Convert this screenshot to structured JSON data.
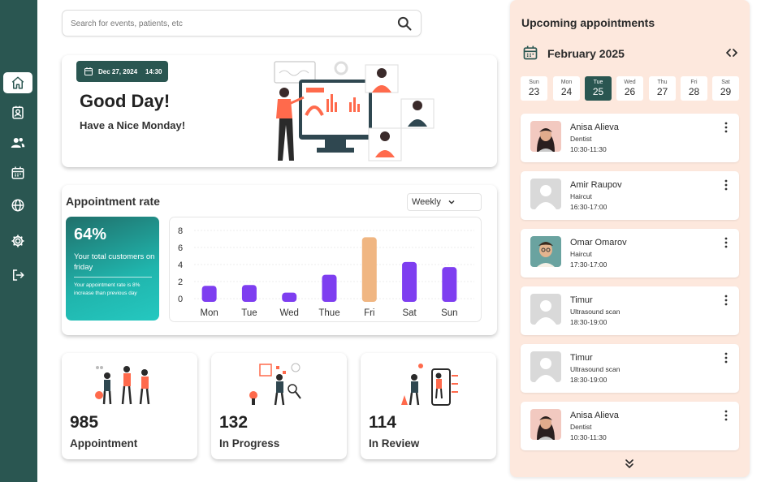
{
  "sidebar": {
    "items": [
      {
        "icon": "home-icon",
        "active": true
      },
      {
        "icon": "contact-card-icon"
      },
      {
        "icon": "users-icon"
      },
      {
        "icon": "calendar-icon"
      },
      {
        "icon": "globe-icon"
      },
      {
        "icon": "gear-icon"
      },
      {
        "icon": "logout-icon"
      }
    ]
  },
  "search": {
    "placeholder": "Search for events, patients, etc"
  },
  "hero": {
    "date": "Dec 27, 2024",
    "time": "14:30",
    "title": "Good Day!",
    "subtitle": "Have a Nice Monday!"
  },
  "rate": {
    "title": "Appointment rate",
    "period": "Weekly",
    "percent": "64%",
    "description": "Your total customers on friday",
    "note": "Your appointment rate is 8% increase than previous day"
  },
  "chart_data": {
    "type": "bar",
    "categories": [
      "Mon",
      "Tue",
      "Wed",
      "Thue",
      "Fri",
      "Sat",
      "Sun"
    ],
    "values": [
      1.5,
      1.6,
      0.7,
      2.8,
      7.2,
      4.3,
      3.7
    ],
    "highlight": "Fri",
    "yticks": [
      "0",
      "2",
      "4",
      "6",
      "8"
    ],
    "ylim": [
      0,
      8
    ],
    "title": "",
    "xlabel": "",
    "ylabel": "",
    "colors": {
      "normal": "#7e3ef0",
      "highlight": "#f0b682"
    }
  },
  "stats": [
    {
      "value": "985",
      "label": "Appointment"
    },
    {
      "value": "132",
      "label": "In Progress"
    },
    {
      "value": "114",
      "label": "In Review"
    }
  ],
  "panel": {
    "title": "Upcoming appointments",
    "month": "February 2025",
    "days": [
      {
        "name": "Sun",
        "num": "23"
      },
      {
        "name": "Mon",
        "num": "24"
      },
      {
        "name": "Tue",
        "num": "25",
        "selected": true
      },
      {
        "name": "Wed",
        "num": "26"
      },
      {
        "name": "Thu",
        "num": "27"
      },
      {
        "name": "Fri",
        "num": "28"
      },
      {
        "name": "Sat",
        "num": "29"
      }
    ],
    "appointments": [
      {
        "name": "Anisa Alieva",
        "service": "Dentist",
        "time": "10:30-11:30",
        "avatar": "woman"
      },
      {
        "name": "Amir Raupov",
        "service": "Haircut",
        "time": "16:30-17:00",
        "avatar": "placeholder"
      },
      {
        "name": "Omar Omarov",
        "service": "Haircut",
        "time": "17:30-17:00",
        "avatar": "man"
      },
      {
        "name": "Timur",
        "service": "Ultrasound scan",
        "time": "18:30-19:00",
        "avatar": "placeholder"
      },
      {
        "name": "Timur",
        "service": "Ultrasound scan",
        "time": "18:30-19:00",
        "avatar": "placeholder"
      },
      {
        "name": "Anisa Alieva",
        "service": "Dentist",
        "time": "10:30-11:30",
        "avatar": "woman"
      }
    ]
  },
  "colors": {
    "brand": "#2a5651",
    "panel_bg": "#fde8dd",
    "accent": "#f0b682",
    "bar": "#7e3ef0"
  }
}
